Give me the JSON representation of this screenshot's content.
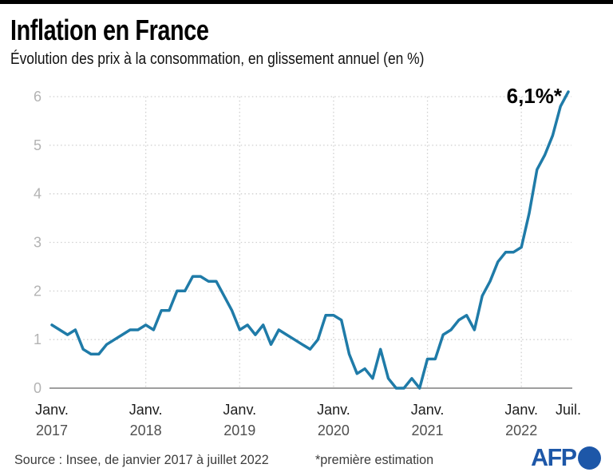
{
  "header": {
    "title": "Inflation en France",
    "subtitle": "Évolution des prix à la consommation, en glissement annuel (en %)"
  },
  "chart_data": {
    "type": "line",
    "title": "Inflation en France",
    "subtitle": "Évolution des prix à la consommation, en glissement annuel (en %)",
    "unit": "%",
    "grid": true,
    "ylim": [
      0,
      6.2
    ],
    "y_ticks": [
      0,
      1,
      2,
      3,
      4,
      5,
      6
    ],
    "x_tick_labels": [
      {
        "month": "Janv.",
        "year": "2017"
      },
      {
        "month": "Janv.",
        "year": "2018"
      },
      {
        "month": "Janv.",
        "year": "2019"
      },
      {
        "month": "Janv.",
        "year": "2020"
      },
      {
        "month": "Janv.",
        "year": "2021"
      },
      {
        "month": "Janv.",
        "year": "2022"
      },
      {
        "month": "Juil.",
        "year": ""
      }
    ],
    "annotation": "6,1%*",
    "line_color": "#1f7ba8",
    "grid_color": "#cfcfcf",
    "axis_color": "#7f7f7f",
    "y_label_color": "#b3b3b3",
    "x_month_color": "#1e1e1e",
    "x_year_color": "#4f4f4f",
    "series": [
      {
        "name": "Prix à la consommation, glissement annuel (%)",
        "data_by_year": [
          {
            "year": "2017",
            "values": [
              1.3,
              1.2,
              1.1,
              1.2,
              0.8,
              0.7,
              0.7,
              0.9,
              1.0,
              1.1,
              1.2,
              1.2
            ]
          },
          {
            "year": "2018",
            "values": [
              1.3,
              1.2,
              1.6,
              1.6,
              2.0,
              2.0,
              2.3,
              2.3,
              2.2,
              2.2,
              1.9,
              1.6
            ]
          },
          {
            "year": "2019",
            "values": [
              1.2,
              1.3,
              1.1,
              1.3,
              0.9,
              1.2,
              1.1,
              1.0,
              0.9,
              0.8,
              1.0,
              1.5
            ]
          },
          {
            "year": "2020",
            "values": [
              1.5,
              1.4,
              0.7,
              0.3,
              0.4,
              0.2,
              0.8,
              0.2,
              0.0,
              0.0,
              0.2,
              0.0
            ]
          },
          {
            "year": "2021",
            "values": [
              0.6,
              0.6,
              1.1,
              1.2,
              1.4,
              1.5,
              1.2,
              1.9,
              2.2,
              2.6,
              2.8,
              2.8
            ]
          },
          {
            "year": "2022",
            "values": [
              2.9,
              3.6,
              4.5,
              4.8,
              5.2,
              5.8,
              6.1
            ]
          }
        ]
      }
    ]
  },
  "footer": {
    "source": "Source : Insee, de janvier 2017 à juillet 2022",
    "note": "*première estimation",
    "logo": "AFP"
  }
}
